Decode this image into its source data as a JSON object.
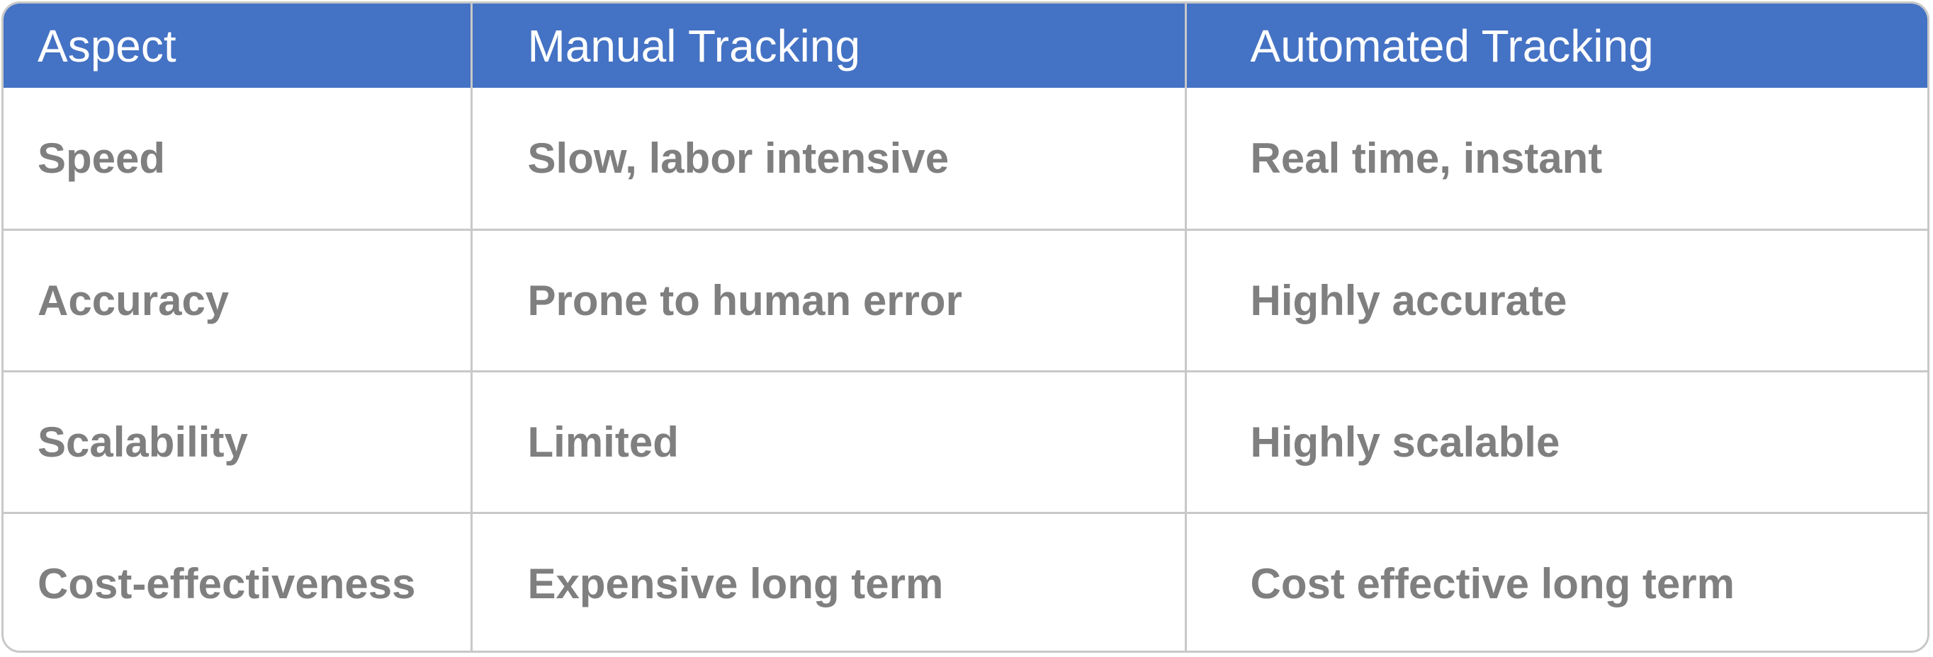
{
  "table": {
    "headers": [
      "Aspect",
      "Manual Tracking",
      "Automated Tracking"
    ],
    "rows": [
      [
        "Speed",
        "Slow, labor intensive",
        "Real time, instant"
      ],
      [
        "Accuracy",
        "Prone to human error",
        "Highly accurate"
      ],
      [
        "Scalability",
        "Limited",
        "Highly scalable"
      ],
      [
        "Cost-effectiveness",
        "Expensive long term",
        "Cost effective long term"
      ]
    ]
  },
  "colors": {
    "header_bg": "#4472c4",
    "header_text": "#ffffff",
    "body_text": "#7f7f7f",
    "border": "#c8c8c8"
  }
}
